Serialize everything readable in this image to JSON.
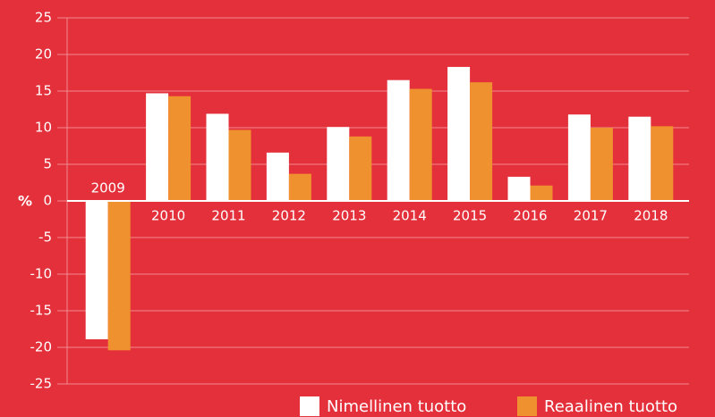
{
  "chart_data": {
    "type": "bar",
    "y_label": "%",
    "categories": [
      "2009",
      "2010",
      "2011",
      "2012",
      "2013",
      "2014",
      "2015",
      "2016",
      "2017",
      "2018"
    ],
    "series": [
      {
        "name": "Nimellinen tuotto",
        "color": "#ffffff",
        "values": [
          -18.9,
          14.7,
          11.9,
          6.6,
          10.1,
          16.5,
          18.3,
          3.3,
          11.8,
          11.5
        ]
      },
      {
        "name": "Reaalinen tuotto",
        "color": "#f0912f",
        "values": [
          -20.4,
          14.3,
          9.7,
          3.7,
          8.8,
          15.3,
          16.2,
          2.1,
          10.0,
          10.2
        ]
      }
    ],
    "ylim": [
      -25,
      25
    ],
    "yticks": [
      -25,
      -20,
      -15,
      -10,
      -5,
      0,
      5,
      10,
      15,
      20,
      25
    ],
    "grid": true,
    "legend": "bottom-right"
  }
}
